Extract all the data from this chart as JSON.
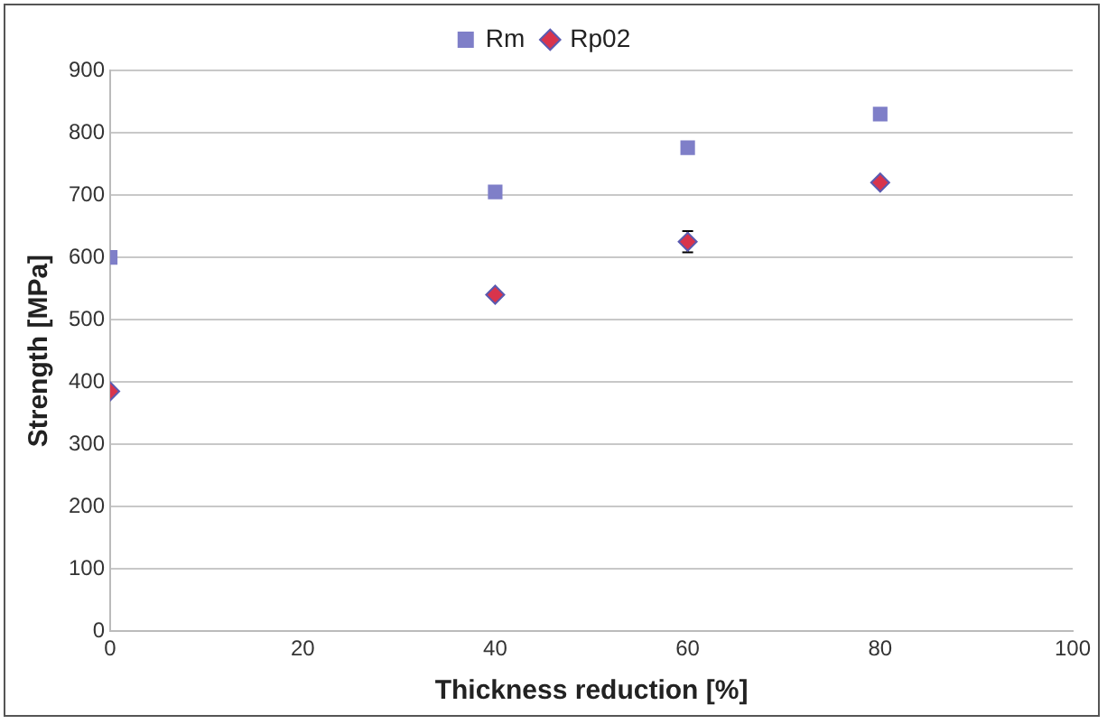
{
  "chart_data": {
    "type": "scatter",
    "xlabel": "Thickness reduction [%]",
    "ylabel": "Strength [MPa]",
    "x": [
      0,
      40,
      60,
      80
    ],
    "series": [
      {
        "name": "Rm",
        "color": "#7f7fc8",
        "marker": "square",
        "values": [
          600,
          705,
          776,
          830
        ]
      },
      {
        "name": "Rp02",
        "color": "#d8344c",
        "marker": "diamond",
        "values": [
          385,
          540,
          625,
          720
        ],
        "errors": [
          null,
          null,
          17,
          null
        ]
      }
    ],
    "xlim": [
      0,
      100
    ],
    "xticks": [
      0,
      20,
      40,
      60,
      80,
      100
    ],
    "ylim": [
      0,
      900
    ],
    "yticks": [
      0,
      100,
      200,
      300,
      400,
      500,
      600,
      700,
      800,
      900
    ],
    "grid": "y",
    "legend": "top"
  }
}
